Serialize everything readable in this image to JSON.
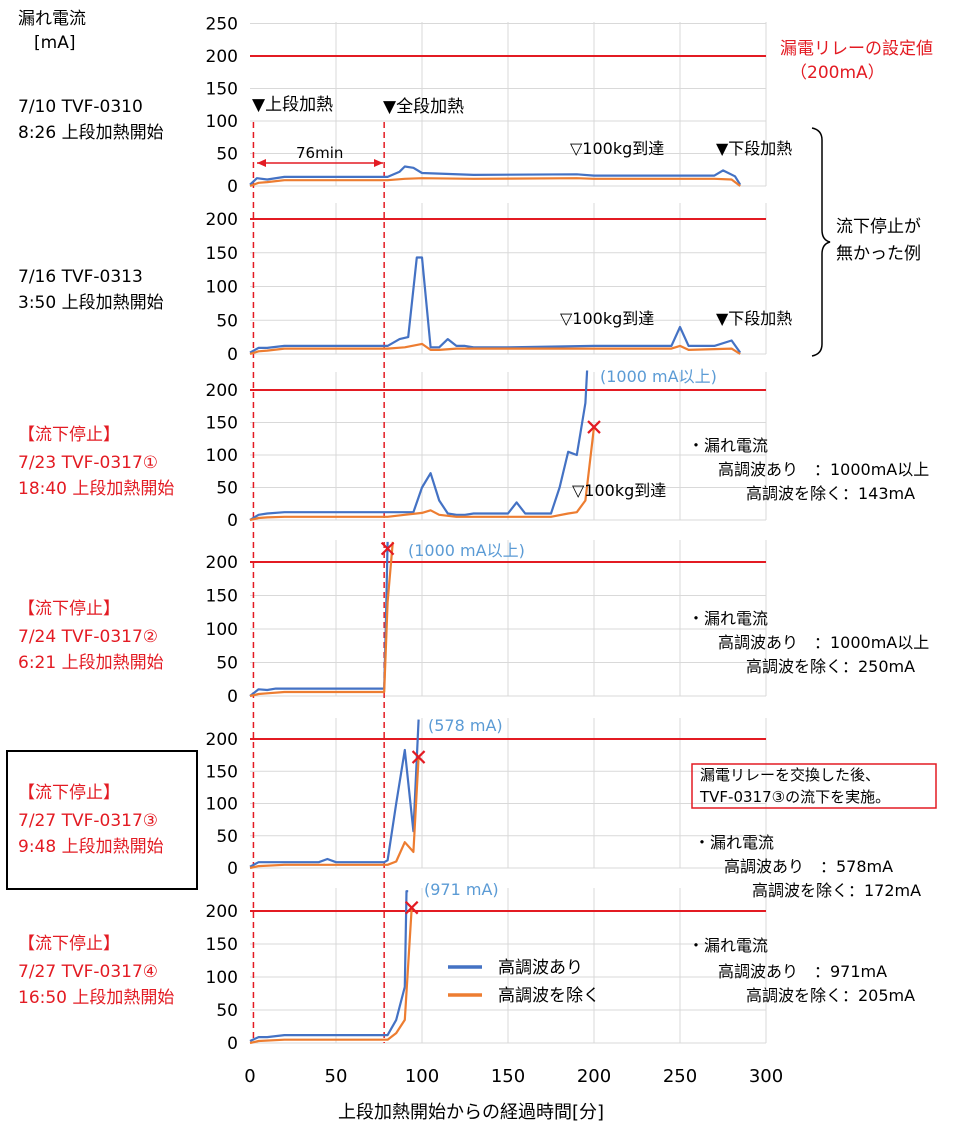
{
  "y_axis_title": [
    "漏れ電流",
    "[mA]"
  ],
  "x_axis_title": "上段加熱開始からの経過時間[分]",
  "relay_label": [
    "漏電リレーの設定値",
    "（200mA）"
  ],
  "heating_markers": [
    "▼上段加熱",
    "▼全段加熱"
  ],
  "interval_label": "76min",
  "brace_label": [
    "流下停止が",
    "無かった例"
  ],
  "legend": [
    {
      "name": "高調波あり",
      "color": "#4472c4"
    },
    {
      "name": "高調波を除く",
      "color": "#ed7d31"
    }
  ],
  "colors": {
    "threshold": "#e31b23",
    "series_with": "#4472c4",
    "series_without": "#ed7d31",
    "event_text": "#e31b23",
    "peak_note": "#5b9bd5"
  },
  "exchange_note": [
    "漏電リレーを交換した後、",
    "TVF-0317③の流下を実施。"
  ],
  "chart_data": {
    "type": "line",
    "xlabel": "上段加熱開始からの経過時間[分]",
    "ylabel": "漏れ電流 [mA]",
    "xlim": [
      0,
      300
    ],
    "x_ticks": [
      "0",
      "50",
      "100",
      "150",
      "200",
      "250",
      "300"
    ],
    "threshold": 200,
    "panels": [
      {
        "labels": [
          "7/10 TVF-0310",
          "8:26 上段加熱開始"
        ],
        "label_color": "black",
        "ylim": [
          0,
          250
        ],
        "y_ticks": [
          "0",
          "50",
          "100",
          "150",
          "200",
          "250"
        ],
        "annotations": [
          "▽100kg到達",
          "▼下段加熱"
        ],
        "series": [
          {
            "name": "高調波あり",
            "x": [
              0,
              4,
              10,
              20,
              80,
              87,
              90,
              95,
              100,
              130,
              190,
              200,
              270,
              275,
              282,
              285
            ],
            "y": [
              2,
              12,
              10,
              14,
              14,
              22,
              30,
              28,
              20,
              17,
              18,
              16,
              16,
              24,
              15,
              2
            ]
          },
          {
            "name": "高調波を除く",
            "x": [
              0,
              5,
              10,
              20,
              80,
              90,
              100,
              130,
              190,
              200,
              270,
              280,
              285
            ],
            "y": [
              0,
              5,
              6,
              9,
              9,
              11,
              12,
              11,
              12,
              11,
              11,
              10,
              0
            ]
          }
        ]
      },
      {
        "labels": [
          "7/16 TVF-0313",
          "3:50 上段加熱開始"
        ],
        "label_color": "black",
        "ylim": [
          0,
          230
        ],
        "y_ticks": [
          "0",
          "50",
          "100",
          "150",
          "200"
        ],
        "annotations": [
          "▽100kg到達",
          "▼下段加熱"
        ],
        "series": [
          {
            "name": "高調波あり",
            "x": [
              0,
              5,
              10,
              20,
              80,
              87,
              92,
              97,
              100,
              105,
              110,
              115,
              120,
              125,
              130,
              150,
              200,
              245,
              250,
              255,
              270,
              280,
              285
            ],
            "y": [
              2,
              9,
              9,
              12,
              12,
              22,
              25,
              143,
              143,
              10,
              10,
              22,
              12,
              12,
              10,
              10,
              12,
              12,
              40,
              12,
              12,
              20,
              2
            ]
          },
          {
            "name": "高調波を除く",
            "x": [
              0,
              5,
              10,
              20,
              80,
              90,
              100,
              105,
              110,
              120,
              150,
              200,
              245,
              250,
              255,
              280,
              285
            ],
            "y": [
              0,
              4,
              5,
              8,
              8,
              10,
              15,
              6,
              6,
              8,
              8,
              8,
              8,
              12,
              6,
              8,
              0
            ]
          }
        ]
      },
      {
        "labels": [
          "【流下停止】",
          "7/23 TVF-0317①",
          "18:40 上段加熱開始"
        ],
        "label_color": "red",
        "ylim": [
          0,
          230
        ],
        "y_ticks": [
          "0",
          "50",
          "100",
          "150",
          "200"
        ],
        "annotations": [
          "▽100kg到達",
          "(1000 mA以上)"
        ],
        "notes": [
          "・漏れ電流",
          "高調波あり　：1000mA以上",
          "高調波を除く：143mA"
        ],
        "stop_at": {
          "x": 200,
          "y": 143
        },
        "series": [
          {
            "name": "高調波あり",
            "x": [
              0,
              5,
              10,
              20,
              80,
              85,
              95,
              100,
              105,
              110,
              115,
              120,
              125,
              130,
              150,
              155,
              160,
              175,
              180,
              185,
              190,
              195,
              196
            ],
            "y": [
              0,
              8,
              10,
              12,
              12,
              12,
              12,
              50,
              72,
              30,
              10,
              8,
              8,
              10,
              10,
              27,
              10,
              10,
              50,
              105,
              100,
              180,
              230
            ]
          },
          {
            "name": "高調波を除く",
            "x": [
              0,
              5,
              10,
              20,
              80,
              90,
              100,
              105,
              110,
              120,
              150,
              175,
              185,
              190,
              195,
              200
            ],
            "y": [
              0,
              3,
              4,
              5,
              5,
              8,
              11,
              15,
              8,
              5,
              5,
              5,
              10,
              12,
              30,
              143
            ]
          }
        ]
      },
      {
        "labels": [
          "【流下停止】",
          "7/24 TVF-0317②",
          "6:21 上段加熱開始"
        ],
        "label_color": "red",
        "ylim": [
          0,
          230
        ],
        "y_ticks": [
          "0",
          "50",
          "100",
          "150",
          "200"
        ],
        "annotations": [
          "(1000 mA以上)"
        ],
        "notes": [
          "・漏れ電流",
          "高調波あり　：1000mA以上",
          "高調波を除く：250mA"
        ],
        "stop_at": {
          "x": 80,
          "y": 220
        },
        "series": [
          {
            "name": "高調波あり",
            "x": [
              0,
              5,
              10,
              15,
              20,
              78,
              79,
              80
            ],
            "y": [
              0,
              10,
              9,
              11,
              11,
              11,
              110,
              230
            ]
          },
          {
            "name": "高調波を除く",
            "x": [
              0,
              5,
              10,
              20,
              78,
              80,
              83
            ],
            "y": [
              0,
              3,
              4,
              6,
              6,
              140,
              230
            ]
          }
        ]
      },
      {
        "labels": [
          "【流下停止】",
          "7/27 TVF-0317③",
          "9:48 上段加熱開始"
        ],
        "label_color": "red",
        "ylim": [
          0,
          230
        ],
        "y_ticks": [
          "0",
          "50",
          "100",
          "150",
          "200"
        ],
        "annotations": [
          "(578 mA)"
        ],
        "notes": [
          "・漏れ電流",
          "高調波あり　：578mA",
          "高調波を除く：172mA"
        ],
        "stop_at": {
          "x": 98,
          "y": 172
        },
        "series": [
          {
            "name": "高調波あり",
            "x": [
              0,
              5,
              40,
              45,
              50,
              78,
              80,
              85,
              90,
              95,
              98
            ],
            "y": [
              2,
              9,
              9,
              14,
              9,
              9,
              12,
              100,
              183,
              57,
              230
            ]
          },
          {
            "name": "高調波を除く",
            "x": [
              0,
              5,
              20,
              80,
              85,
              90,
              95,
              98
            ],
            "y": [
              0,
              3,
              5,
              5,
              10,
              40,
              25,
              172
            ]
          }
        ]
      },
      {
        "labels": [
          "【流下停止】",
          "7/27 TVF-0317④",
          "16:50 上段加熱開始"
        ],
        "label_color": "red",
        "ylim": [
          0,
          230
        ],
        "y_ticks": [
          "0",
          "50",
          "100",
          "150",
          "200"
        ],
        "annotations": [
          "(971 mA)"
        ],
        "notes": [
          "・漏れ電流",
          "高調波あり　：971mA",
          "高調波を除く：205mA"
        ],
        "stop_at": {
          "x": 94,
          "y": 205
        },
        "series": [
          {
            "name": "高調波あり",
            "x": [
              0,
              5,
              10,
              20,
              80,
              85,
              90,
              91,
              92
            ],
            "y": [
              3,
              9,
              9,
              12,
              12,
              35,
              85,
              230,
              230
            ]
          },
          {
            "name": "高調波を除く",
            "x": [
              0,
              5,
              20,
              80,
              85,
              90,
              94
            ],
            "y": [
              0,
              3,
              5,
              5,
              15,
              35,
              205
            ]
          }
        ]
      }
    ]
  }
}
